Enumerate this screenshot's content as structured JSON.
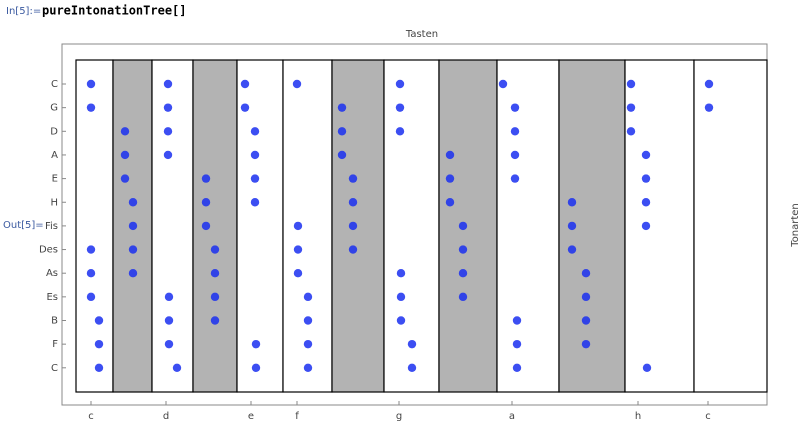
{
  "notebook": {
    "in_label": "In[5]:=",
    "input": "pureIntonationTree[]",
    "out_label": "Out[5]="
  },
  "chart_data": {
    "type": "scatter",
    "title": "Tasten",
    "y_label": "Tonarten",
    "xlim": [
      0,
      705
    ],
    "xticks": [
      {
        "value": 29,
        "label": "c"
      },
      {
        "value": 104,
        "label": "d"
      },
      {
        "value": 189,
        "label": "e"
      },
      {
        "value": 235,
        "label": "f"
      },
      {
        "value": 337,
        "label": "g"
      },
      {
        "value": 450,
        "label": "a"
      },
      {
        "value": 576,
        "label": "h"
      },
      {
        "value": 646,
        "label": "c"
      }
    ],
    "categories": [
      "C",
      "G",
      "D",
      "A",
      "E",
      "H",
      "Fis",
      "Des",
      "As",
      "Es",
      "B",
      "F",
      "C"
    ],
    "color": "#1a2ff0",
    "keys": [
      {
        "x": [
          14,
          51
        ],
        "color": "#ffffff"
      },
      {
        "x": [
          51,
          90
        ],
        "color": "#b3b3b3"
      },
      {
        "x": [
          90,
          131
        ],
        "color": "#ffffff"
      },
      {
        "x": [
          131,
          175
        ],
        "color": "#b3b3b3"
      },
      {
        "x": [
          175,
          221
        ],
        "color": "#ffffff"
      },
      {
        "x": [
          221,
          270
        ],
        "color": "#ffffff"
      },
      {
        "x": [
          270,
          322
        ],
        "color": "#b3b3b3"
      },
      {
        "x": [
          322,
          377
        ],
        "color": "#ffffff"
      },
      {
        "x": [
          377,
          435
        ],
        "color": "#b3b3b3"
      },
      {
        "x": [
          435,
          497
        ],
        "color": "#ffffff"
      },
      {
        "x": [
          497,
          563
        ],
        "color": "#b3b3b3"
      },
      {
        "x": [
          563,
          632
        ],
        "color": "#ffffff"
      },
      {
        "x": [
          632,
          705
        ],
        "color": "#ffffff"
      }
    ],
    "rows": [
      [
        29,
        106,
        183,
        235,
        338,
        441,
        569,
        647
      ],
      [
        29,
        106,
        183,
        280,
        338,
        453,
        569,
        647
      ],
      [
        63,
        106,
        193,
        280,
        338,
        453,
        569
      ],
      [
        63,
        106,
        193,
        280,
        388,
        453,
        584
      ],
      [
        63,
        144,
        193,
        291,
        388,
        453,
        584
      ],
      [
        71,
        144,
        193,
        291,
        388,
        510,
        584
      ],
      [
        71,
        144,
        236,
        291,
        401,
        510,
        584
      ],
      [
        29,
        71,
        153,
        236,
        291,
        401,
        510
      ],
      [
        29,
        71,
        153,
        236,
        339,
        401,
        524
      ],
      [
        29,
        107,
        153,
        246,
        339,
        401,
        524
      ],
      [
        37,
        107,
        153,
        246,
        339,
        455,
        524
      ],
      [
        37,
        107,
        194,
        246,
        350,
        455,
        524
      ],
      [
        37,
        115,
        194,
        246,
        350,
        455,
        585
      ]
    ]
  }
}
